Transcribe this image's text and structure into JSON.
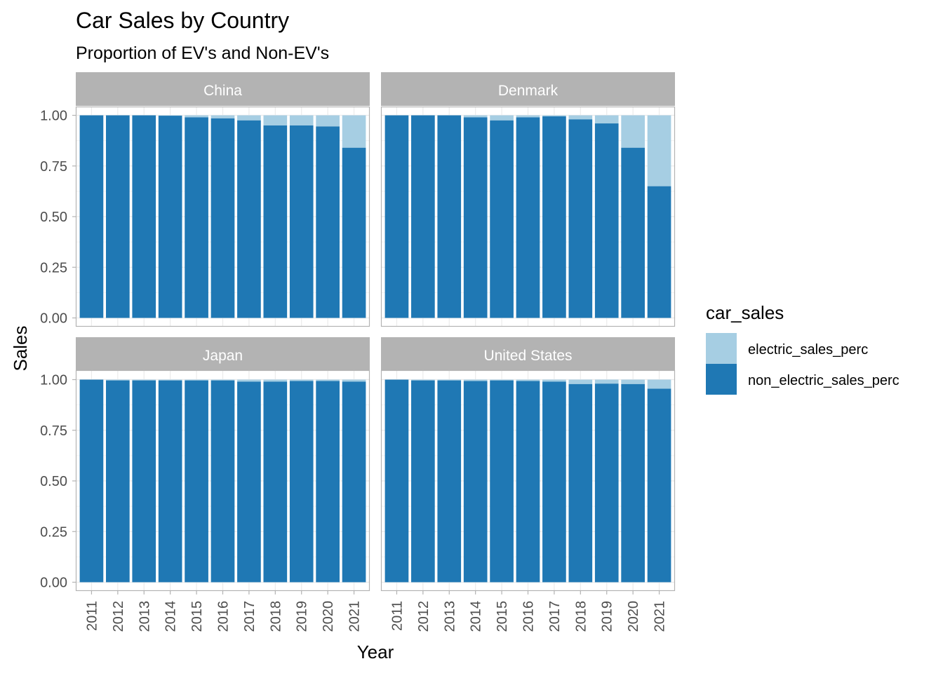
{
  "chart_data": {
    "type": "bar",
    "stacked": true,
    "title": "Car Sales by Country",
    "subtitle": "Proportion of EV's and Non-EV's",
    "xlabel": "Year",
    "ylabel": "Sales",
    "ylim": [
      0,
      1
    ],
    "yticks": [
      "0.00",
      "0.25",
      "0.50",
      "0.75",
      "1.00"
    ],
    "categories": [
      "2011",
      "2012",
      "2013",
      "2014",
      "2015",
      "2016",
      "2017",
      "2018",
      "2019",
      "2020",
      "2021"
    ],
    "grid": true,
    "legend": {
      "title": "car_sales",
      "position": "right",
      "items": [
        {
          "name": "electric_sales_perc",
          "color": "#a6cee3"
        },
        {
          "name": "non_electric_sales_perc",
          "color": "#1f78b4"
        }
      ]
    },
    "facets": [
      {
        "name": "China",
        "non_electric_sales_perc": [
          1.0,
          1.0,
          1.0,
          0.998,
          0.99,
          0.985,
          0.975,
          0.95,
          0.95,
          0.945,
          0.84
        ]
      },
      {
        "name": "Denmark",
        "non_electric_sales_perc": [
          1.0,
          1.0,
          1.0,
          0.99,
          0.975,
          0.99,
          0.995,
          0.98,
          0.96,
          0.84,
          0.65
        ]
      },
      {
        "name": "Japan",
        "non_electric_sales_perc": [
          1.0,
          0.996,
          0.996,
          0.996,
          0.996,
          0.996,
          0.99,
          0.99,
          0.993,
          0.993,
          0.99
        ]
      },
      {
        "name": "United States",
        "non_electric_sales_perc": [
          1.0,
          0.996,
          0.996,
          0.993,
          0.996,
          0.993,
          0.99,
          0.978,
          0.98,
          0.978,
          0.955
        ]
      }
    ]
  }
}
